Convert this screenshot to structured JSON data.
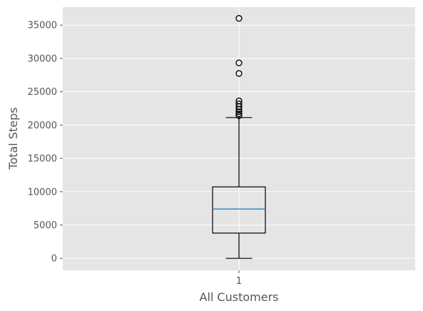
{
  "chart_data": {
    "type": "box",
    "title": "",
    "xlabel": "All Customers",
    "ylabel": "Total Steps",
    "categories": [
      "1"
    ],
    "ylim": [
      -1800,
      37700
    ],
    "yticks": [
      0,
      5000,
      10000,
      15000,
      20000,
      25000,
      30000,
      35000
    ],
    "ytick_labels": [
      "0",
      "5000",
      "10000",
      "15000",
      "20000",
      "25000",
      "30000",
      "35000"
    ],
    "grid": true,
    "boxes": [
      {
        "category": "1",
        "whisker_low": 0,
        "q1": 3790,
        "median": 7405,
        "q3": 10727,
        "whisker_high": 21130,
        "outliers": [
          21420,
          21700,
          22000,
          22360,
          22770,
          23190,
          23630,
          27750,
          29330,
          36020
        ]
      }
    ],
    "colors": {
      "background": "#e5e5e5",
      "grid": "#ffffff",
      "box": "#000000",
      "median": "#348abd",
      "text": "#555555"
    }
  }
}
